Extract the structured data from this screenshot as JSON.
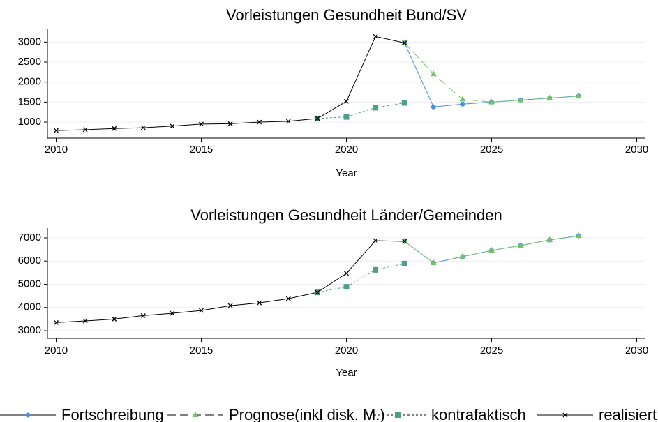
{
  "chart_data": [
    {
      "type": "line",
      "title": "Vorleistungen Gesundheit Bund/SV",
      "xlabel": "Year",
      "x": [
        2010,
        2011,
        2012,
        2013,
        2014,
        2015,
        2016,
        2017,
        2018,
        2019,
        2020,
        2021,
        2022,
        2023,
        2024,
        2025,
        2026,
        2027,
        2028
      ],
      "xlim": [
        2009.7,
        2030.3
      ],
      "xticks": [
        2010,
        2015,
        2020,
        2025,
        2030
      ],
      "ylim": [
        600,
        3320
      ],
      "yticks": [
        1000,
        1500,
        2000,
        2500,
        3000
      ],
      "grid": true,
      "series": [
        {
          "name": "Fortschreibung",
          "color": "#4a90d9",
          "linestyle": "solid",
          "marker": "circle",
          "values": [
            null,
            null,
            null,
            null,
            null,
            null,
            null,
            null,
            null,
            null,
            null,
            null,
            2980,
            1380,
            1450,
            1500,
            1550,
            1600,
            1650
          ]
        },
        {
          "name": "Prognose(inkl disk. M.)",
          "color": "#76c26b",
          "linestyle": "dashed",
          "marker": "triangle",
          "values": [
            null,
            null,
            null,
            null,
            null,
            null,
            null,
            null,
            null,
            null,
            null,
            null,
            2980,
            2200,
            1570,
            1500,
            1550,
            1600,
            1650
          ]
        },
        {
          "name": "kontrafaktisch",
          "color": "#4e9e8a",
          "linestyle": "dotted",
          "marker": "square",
          "values": [
            null,
            null,
            null,
            null,
            null,
            null,
            null,
            null,
            null,
            1090,
            1130,
            1360,
            1480,
            null,
            null,
            null,
            null,
            null,
            null
          ]
        },
        {
          "name": "realisiert",
          "color": "#000000",
          "linestyle": "solid",
          "marker": "x",
          "values": [
            790,
            810,
            840,
            860,
            900,
            950,
            960,
            1000,
            1020,
            1090,
            1520,
            3140,
            2980,
            null,
            null,
            null,
            null,
            null,
            null
          ]
        }
      ]
    },
    {
      "type": "line",
      "title": "Vorleistungen Gesundheit Länder/Gemeinden",
      "xlabel": "Year",
      "x": [
        2010,
        2011,
        2012,
        2013,
        2014,
        2015,
        2016,
        2017,
        2018,
        2019,
        2020,
        2021,
        2022,
        2023,
        2024,
        2025,
        2026,
        2027,
        2028
      ],
      "xlim": [
        2009.7,
        2030.3
      ],
      "xticks": [
        2010,
        2015,
        2020,
        2025,
        2030
      ],
      "ylim": [
        2670,
        7420
      ],
      "yticks": [
        3000,
        4000,
        5000,
        6000,
        7000
      ],
      "grid": true,
      "legend": "bottom",
      "series": [
        {
          "name": "Fortschreibung",
          "color": "#4a90d9",
          "linestyle": "solid",
          "marker": "circle",
          "values": [
            null,
            null,
            null,
            null,
            null,
            null,
            null,
            null,
            null,
            null,
            null,
            null,
            6850,
            5920,
            6190,
            6460,
            6670,
            6910,
            7090
          ]
        },
        {
          "name": "Prognose(inkl disk. M.)",
          "color": "#76c26b",
          "linestyle": "dashed",
          "marker": "triangle",
          "values": [
            null,
            null,
            null,
            null,
            null,
            null,
            null,
            null,
            null,
            null,
            null,
            null,
            6850,
            5920,
            6190,
            6460,
            6670,
            6910,
            7090
          ]
        },
        {
          "name": "kontrafaktisch",
          "color": "#4e9e8a",
          "linestyle": "dotted",
          "marker": "square",
          "values": [
            null,
            null,
            null,
            null,
            null,
            null,
            null,
            null,
            null,
            4650,
            4890,
            5620,
            5890,
            null,
            null,
            null,
            null,
            null,
            null
          ]
        },
        {
          "name": "realisiert",
          "color": "#000000",
          "linestyle": "solid",
          "marker": "x",
          "values": [
            3350,
            3420,
            3500,
            3650,
            3750,
            3870,
            4080,
            4200,
            4380,
            4650,
            5470,
            6880,
            6850,
            null,
            null,
            null,
            null,
            null,
            null
          ]
        }
      ]
    }
  ]
}
